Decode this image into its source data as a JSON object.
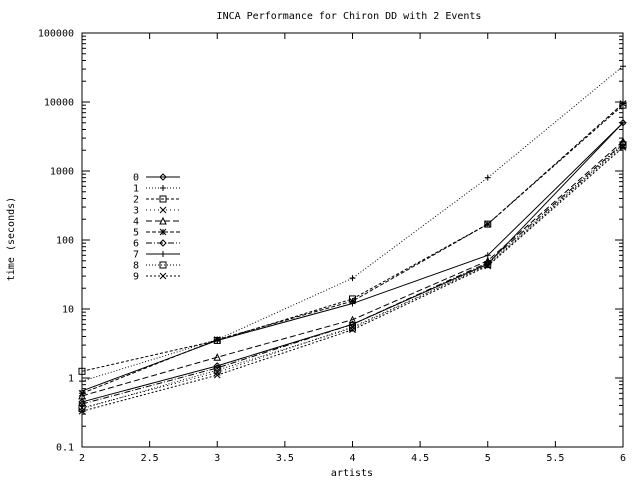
{
  "chart_data": {
    "type": "line",
    "title": "INCA Performance for Chiron DD with 2 Events",
    "xlabel": "artists",
    "ylabel": "time (seconds)",
    "xlim": [
      2,
      6
    ],
    "ylim": [
      0.1,
      100000
    ],
    "yscale": "log",
    "grid": false,
    "legend_position": "left",
    "x": [
      2,
      3,
      4,
      5,
      6
    ],
    "x_ticks": [
      "2",
      "2.5",
      "3",
      "3.5",
      "4",
      "4.5",
      "5",
      "5.5",
      "6"
    ],
    "y_ticks": [
      "0.1",
      "1",
      "10",
      "100",
      "1000",
      "10000",
      "100000"
    ],
    "series": [
      {
        "name": "0",
        "values": [
          0.45,
          1.5,
          6.0,
          45,
          5000
        ]
      },
      {
        "name": "1",
        "values": [
          0.9,
          3.6,
          28,
          800,
          33000
        ]
      },
      {
        "name": "2",
        "values": [
          1.25,
          3.5,
          14,
          170,
          9000
        ]
      },
      {
        "name": "3",
        "values": [
          0.37,
          1.2,
          5.5,
          43,
          2300
        ]
      },
      {
        "name": "4",
        "values": [
          0.55,
          2.0,
          7.0,
          50,
          2700
        ]
      },
      {
        "name": "5",
        "values": [
          0.6,
          3.6,
          13,
          170,
          9500
        ]
      },
      {
        "name": "6",
        "values": [
          0.42,
          1.4,
          6.0,
          47,
          2500
        ]
      },
      {
        "name": "7",
        "values": [
          0.65,
          3.5,
          12,
          60,
          5000
        ]
      },
      {
        "name": "8",
        "values": [
          0.36,
          1.3,
          5.3,
          44,
          2400
        ]
      },
      {
        "name": "9",
        "values": [
          0.33,
          1.1,
          5.0,
          42,
          2200
        ]
      }
    ]
  }
}
